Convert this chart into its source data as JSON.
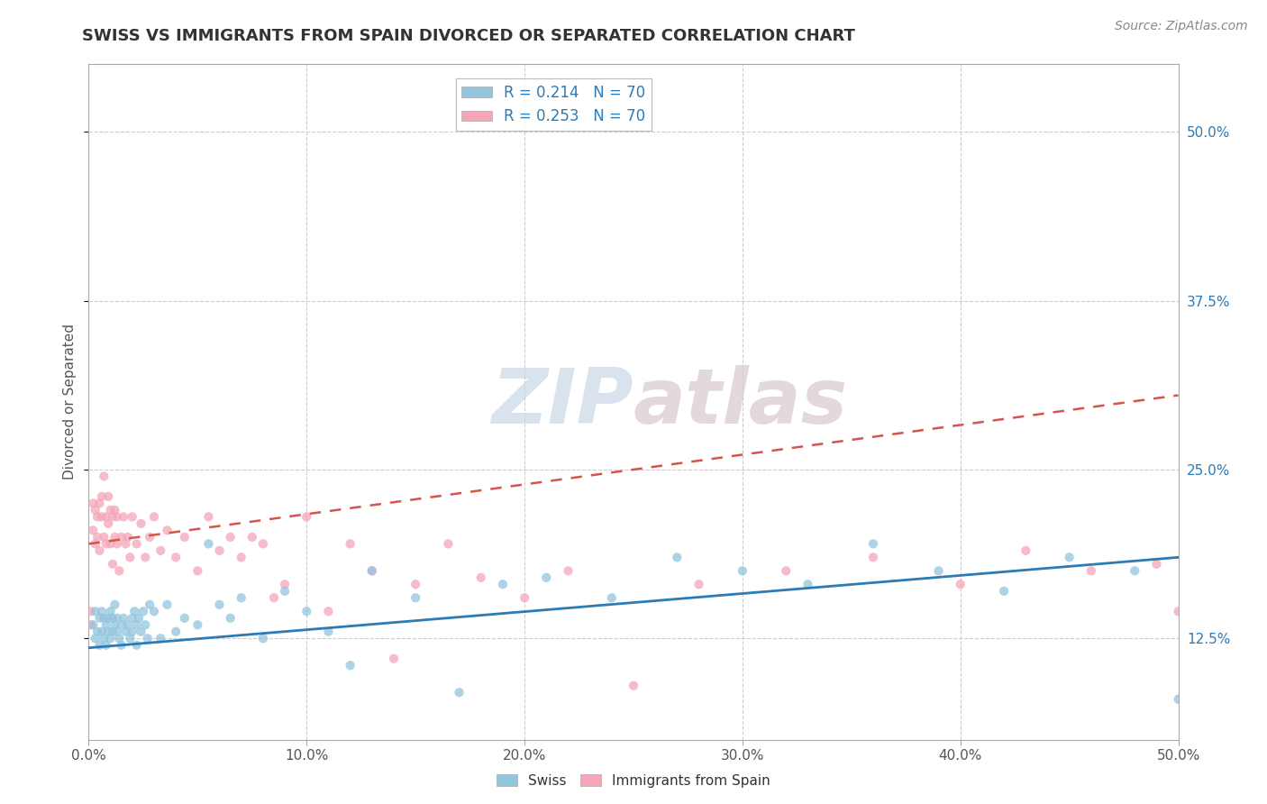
{
  "title": "SWISS VS IMMIGRANTS FROM SPAIN DIVORCED OR SEPARATED CORRELATION CHART",
  "source_text": "Source: ZipAtlas.com",
  "ylabel": "Divorced or Separated",
  "legend_swiss": "Swiss",
  "legend_spain": "Immigrants from Spain",
  "legend_r_swiss": "R = 0.214",
  "legend_n_swiss": "N = 70",
  "legend_r_spain": "R = 0.253",
  "legend_n_spain": "N = 70",
  "watermark_zip": "ZIP",
  "watermark_atlas": "atlas",
  "blue_color": "#92c5de",
  "pink_color": "#f4a6b8",
  "blue_line_color": "#2c7bb6",
  "pink_line_color": "#d7534e",
  "xlim": [
    0.0,
    0.5
  ],
  "ylim": [
    0.05,
    0.55
  ],
  "y_ticks": [
    0.125,
    0.25,
    0.375,
    0.5
  ],
  "y_tick_labels": [
    "12.5%",
    "25.0%",
    "37.5%",
    "50.0%"
  ],
  "x_ticks": [
    0.0,
    0.1,
    0.2,
    0.3,
    0.4,
    0.5
  ],
  "x_tick_labels": [
    "0.0%",
    "10.0%",
    "20.0%",
    "30.0%",
    "40.0%",
    "50.0%"
  ],
  "swiss_line_x0": 0.0,
  "swiss_line_y0": 0.118,
  "swiss_line_x1": 0.5,
  "swiss_line_y1": 0.185,
  "spain_line_x0": 0.0,
  "spain_line_y0": 0.195,
  "spain_line_x1": 0.5,
  "spain_line_y1": 0.305,
  "swiss_x": [
    0.002,
    0.003,
    0.003,
    0.004,
    0.005,
    0.005,
    0.006,
    0.006,
    0.007,
    0.007,
    0.008,
    0.008,
    0.009,
    0.009,
    0.01,
    0.01,
    0.011,
    0.011,
    0.012,
    0.012,
    0.013,
    0.013,
    0.014,
    0.015,
    0.015,
    0.016,
    0.017,
    0.018,
    0.019,
    0.02,
    0.02,
    0.021,
    0.022,
    0.022,
    0.023,
    0.024,
    0.025,
    0.026,
    0.027,
    0.028,
    0.03,
    0.033,
    0.036,
    0.04,
    0.044,
    0.05,
    0.055,
    0.06,
    0.065,
    0.07,
    0.08,
    0.09,
    0.1,
    0.11,
    0.12,
    0.13,
    0.15,
    0.17,
    0.19,
    0.21,
    0.24,
    0.27,
    0.3,
    0.33,
    0.36,
    0.39,
    0.42,
    0.45,
    0.48,
    0.5
  ],
  "swiss_y": [
    0.135,
    0.145,
    0.125,
    0.13,
    0.14,
    0.12,
    0.145,
    0.13,
    0.125,
    0.14,
    0.135,
    0.12,
    0.14,
    0.13,
    0.145,
    0.125,
    0.13,
    0.14,
    0.135,
    0.15,
    0.13,
    0.14,
    0.125,
    0.135,
    0.12,
    0.14,
    0.13,
    0.135,
    0.125,
    0.14,
    0.13,
    0.145,
    0.135,
    0.12,
    0.14,
    0.13,
    0.145,
    0.135,
    0.125,
    0.15,
    0.145,
    0.125,
    0.15,
    0.13,
    0.14,
    0.135,
    0.195,
    0.15,
    0.14,
    0.155,
    0.125,
    0.16,
    0.145,
    0.13,
    0.105,
    0.175,
    0.155,
    0.085,
    0.165,
    0.17,
    0.155,
    0.185,
    0.175,
    0.165,
    0.195,
    0.175,
    0.16,
    0.185,
    0.175,
    0.08
  ],
  "spain_x": [
    0.001,
    0.001,
    0.002,
    0.002,
    0.003,
    0.003,
    0.004,
    0.004,
    0.005,
    0.005,
    0.006,
    0.006,
    0.007,
    0.007,
    0.008,
    0.008,
    0.009,
    0.009,
    0.01,
    0.01,
    0.011,
    0.011,
    0.012,
    0.012,
    0.013,
    0.013,
    0.014,
    0.015,
    0.016,
    0.017,
    0.018,
    0.019,
    0.02,
    0.022,
    0.024,
    0.026,
    0.028,
    0.03,
    0.033,
    0.036,
    0.04,
    0.044,
    0.05,
    0.055,
    0.06,
    0.065,
    0.07,
    0.075,
    0.08,
    0.085,
    0.09,
    0.1,
    0.11,
    0.12,
    0.13,
    0.14,
    0.15,
    0.165,
    0.18,
    0.2,
    0.22,
    0.25,
    0.28,
    0.32,
    0.36,
    0.4,
    0.43,
    0.46,
    0.49,
    0.5
  ],
  "spain_y": [
    0.145,
    0.135,
    0.205,
    0.225,
    0.195,
    0.22,
    0.2,
    0.215,
    0.225,
    0.19,
    0.215,
    0.23,
    0.2,
    0.245,
    0.215,
    0.195,
    0.23,
    0.21,
    0.22,
    0.195,
    0.215,
    0.18,
    0.2,
    0.22,
    0.195,
    0.215,
    0.175,
    0.2,
    0.215,
    0.195,
    0.2,
    0.185,
    0.215,
    0.195,
    0.21,
    0.185,
    0.2,
    0.215,
    0.19,
    0.205,
    0.185,
    0.2,
    0.175,
    0.215,
    0.19,
    0.2,
    0.185,
    0.2,
    0.195,
    0.155,
    0.165,
    0.215,
    0.145,
    0.195,
    0.175,
    0.11,
    0.165,
    0.195,
    0.17,
    0.155,
    0.175,
    0.09,
    0.165,
    0.175,
    0.185,
    0.165,
    0.19,
    0.175,
    0.18,
    0.145
  ],
  "bg_color": "#ffffff",
  "grid_color": "#c8c8c8",
  "title_fontsize": 13,
  "axis_fontsize": 11,
  "ylabel_fontsize": 11,
  "source_fontsize": 10,
  "legend_fontsize": 12,
  "scatter_size": 55,
  "scatter_alpha": 0.75
}
